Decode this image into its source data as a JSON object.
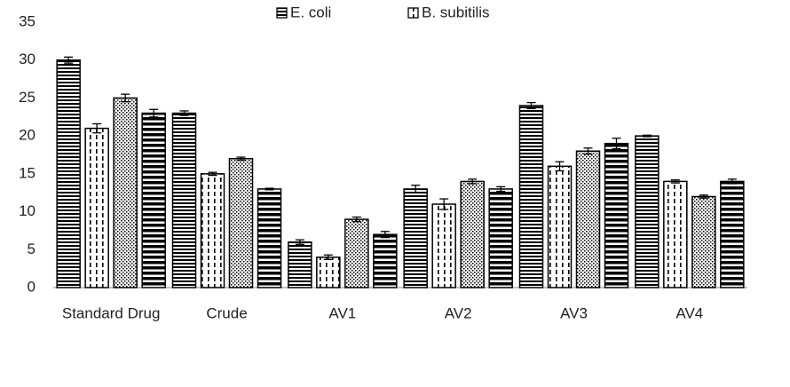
{
  "chart_data": {
    "type": "bar",
    "categories": [
      "Standard Drug",
      "Crude",
      "AV1",
      "AV2",
      "AV3",
      "AV4"
    ],
    "series": [
      {
        "name": "E. coli",
        "color": "#000000",
        "values": [
          30,
          23,
          6,
          13,
          24,
          20
        ],
        "errors": [
          0.4,
          0.3,
          0.3,
          0.5,
          0.4,
          0.1
        ]
      },
      {
        "name": "B. subitilis",
        "color": "#000000",
        "values": [
          21,
          15,
          4,
          11,
          16,
          14
        ],
        "errors": [
          0.6,
          0.2,
          0.3,
          0.7,
          0.6,
          0.2
        ]
      },
      {
        "color": "#000000",
        "values": [
          25,
          17,
          9,
          14,
          18,
          12
        ],
        "errors": [
          0.5,
          0.2,
          0.3,
          0.3,
          0.4,
          0.2
        ]
      },
      {
        "color": "#000000",
        "values": [
          23,
          13,
          7,
          13,
          19,
          14
        ],
        "errors": [
          0.5,
          0.1,
          0.4,
          0.3,
          0.7,
          0.3
        ]
      }
    ],
    "ylim": [
      0,
      35
    ],
    "yticks": [
      0,
      5,
      10,
      15,
      20,
      25,
      30,
      35
    ],
    "grid": false,
    "legend": "top"
  }
}
